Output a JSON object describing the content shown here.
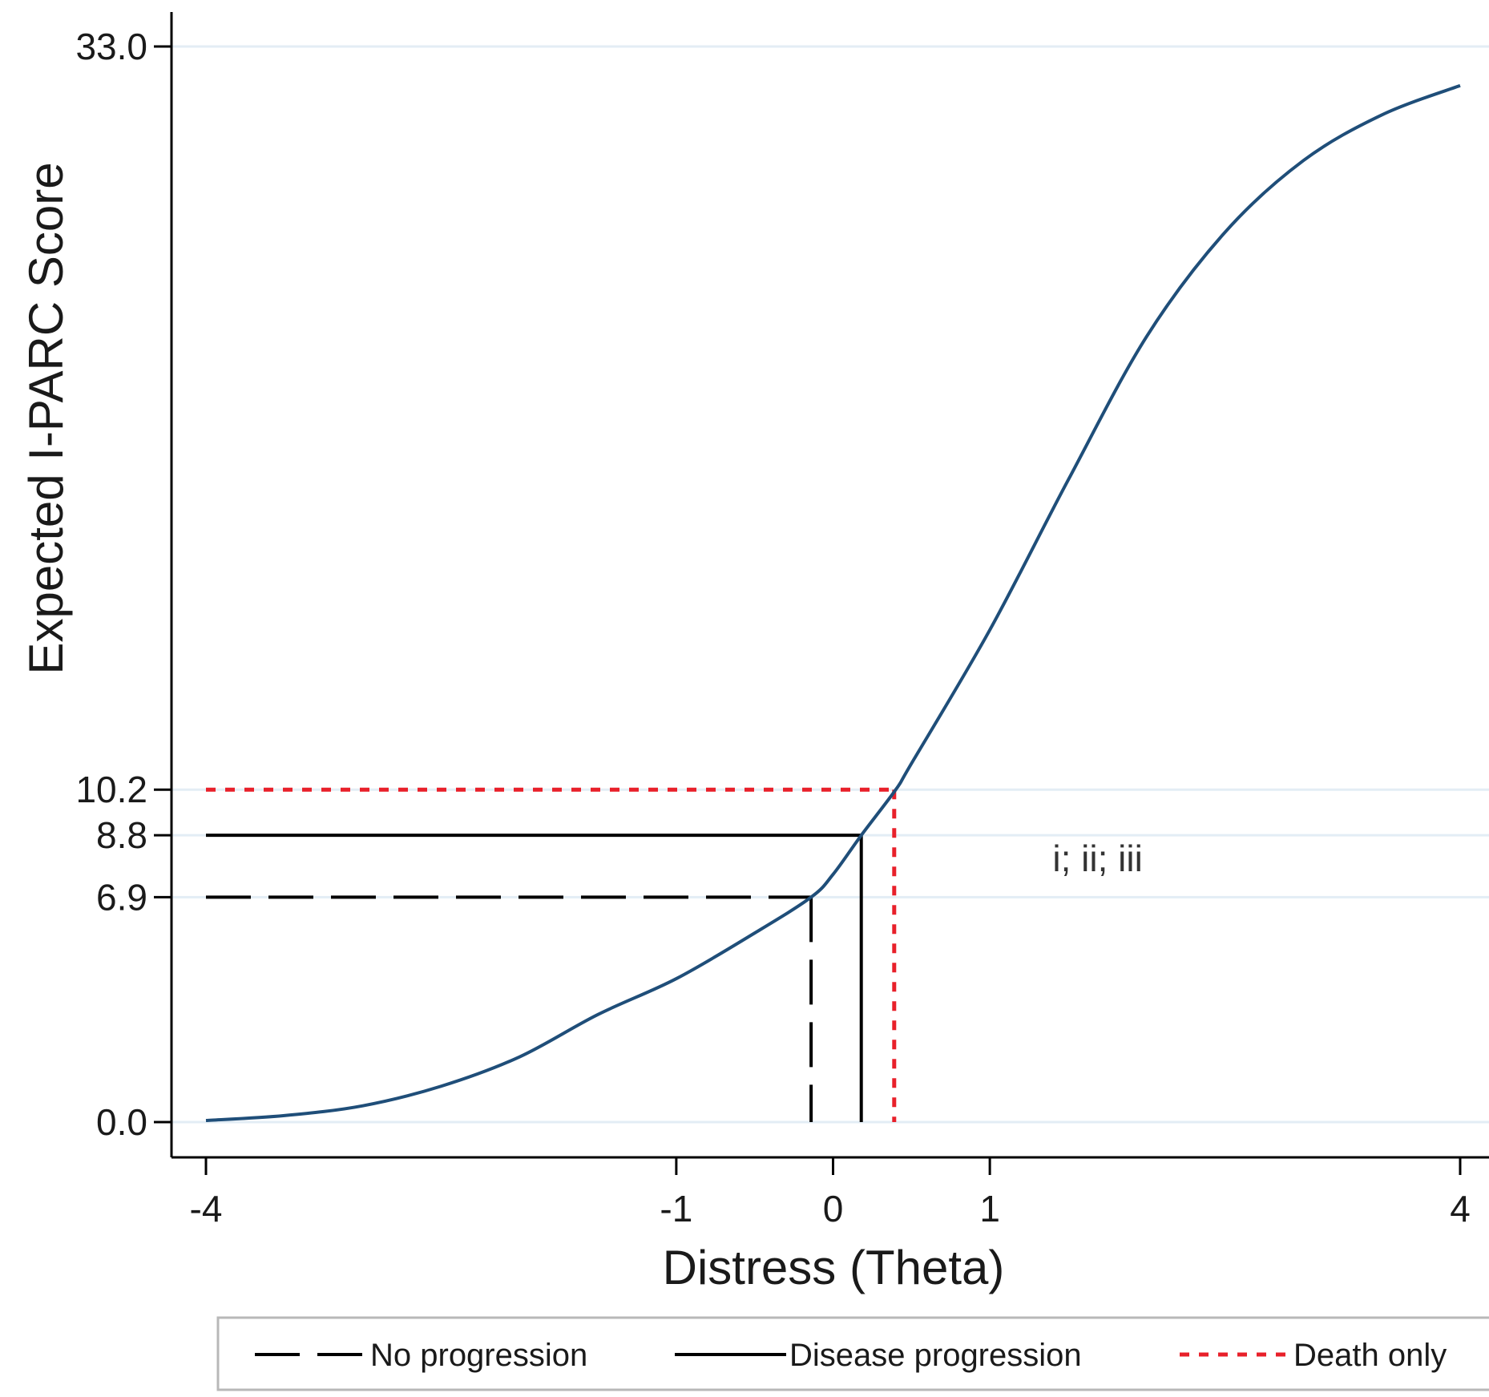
{
  "chart_data": {
    "type": "line",
    "title": "",
    "xlabel": "Distress (Theta)",
    "ylabel": "Expected I-PARC Score",
    "xlim": [
      -4,
      4
    ],
    "ylim": [
      0,
      33
    ],
    "x_ticks": [
      -4,
      -1,
      0,
      1,
      4
    ],
    "y_ticks": [
      0.0,
      6.9,
      8.8,
      10.2,
      33.0
    ],
    "y_tick_labels": [
      "0.0",
      "6.9",
      "8.8",
      "10.2",
      "33.0"
    ],
    "grid": "horizontal at y ticks",
    "curve": {
      "color": "#1f4e79",
      "x": [
        -4,
        -3.5,
        -3,
        -2.5,
        -2,
        -1.5,
        -1,
        -0.5,
        -0.14,
        0,
        0.18,
        0.4,
        0.5,
        1,
        1.5,
        2,
        2.5,
        3,
        3.5,
        4
      ],
      "y": [
        0.05,
        0.2,
        0.5,
        1.1,
        2.0,
        3.3,
        4.4,
        5.8,
        6.9,
        7.6,
        8.8,
        10.2,
        11.0,
        15.1,
        19.7,
        24.1,
        27.3,
        29.5,
        30.9,
        31.8
      ]
    },
    "series": [
      {
        "name": "No progression",
        "x": -0.14,
        "y": 6.9,
        "style": "longdash",
        "color": "#000000"
      },
      {
        "name": "Disease progression",
        "x": 0.18,
        "y": 8.8,
        "style": "solid",
        "color": "#000000"
      },
      {
        "name": "Death only",
        "x": 0.39,
        "y": 10.2,
        "style": "shortdash",
        "color": "#e8202a"
      }
    ],
    "annotations": [
      {
        "text": "i; ii; iii",
        "x": 1.4,
        "y": 7.7
      }
    ],
    "legend_position": "bottom"
  }
}
